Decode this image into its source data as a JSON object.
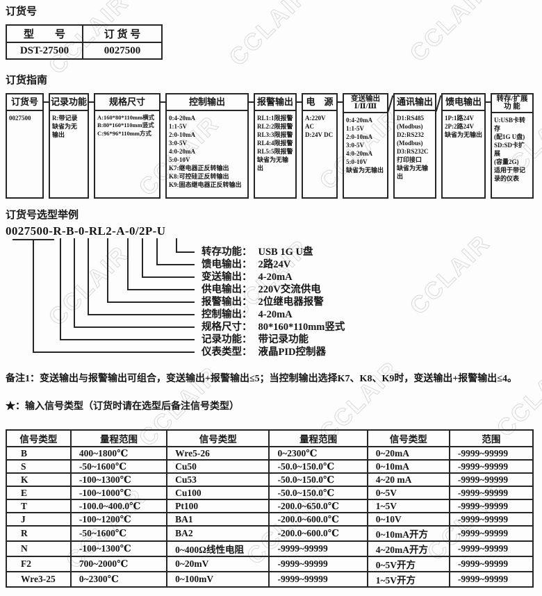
{
  "watermark": {
    "text": "CCLAIR"
  },
  "sections": {
    "order_no_title": "订货号",
    "guide_title": "订货指南",
    "example_title": "订货号选型举例",
    "note1": "备注1：变送输出与报警输出可组合，变送输出+报警输出≤5；当控制输出选择K7、K8、K9时，变送输出+报警输出≤4。",
    "star_note": "★：输入信号类型（订货时请在选型后备注信号类型）"
  },
  "model_table": {
    "headers": [
      "型　　号",
      "订 货 号"
    ],
    "rows": [
      [
        "DST-27500",
        "0027500"
      ]
    ]
  },
  "guide": {
    "columns": [
      {
        "header": "订货号",
        "content": "0027500"
      },
      {
        "header": "记录功能",
        "content": "R:带记录\n缺省为无\n输出"
      },
      {
        "header": "规格尺寸",
        "content": "A:160*80*110mm横式\nB:80*160*110mm竖式\nC:96*96*110mm方式"
      },
      {
        "header": "控制输出",
        "content": "0:4-20mA\n1:1-5V\n2:0-10mA\n3:0-5V\n4:0-20mA\n5:0-10V\nK7:继电器正反转输出\nK8:可控硅正反转输出\nK9:固态继电器正反转输出"
      },
      {
        "header": "报警输出",
        "content": "RL1:1限报警\nRL2:2限报警\nRL3:3限报警\nRL4:4限报警\nRL5:5限报警\n缺省为无输出"
      },
      {
        "header": "电　源",
        "content": "A:220V AC\nD:24V DC"
      },
      {
        "header": "变送输出\nⅠ/Ⅱ/Ⅲ",
        "content": "0:4-20mA\n1:1-5V\n2:0-10mA\n3:0-5V\n4:0-20mA\n5:0-10V\n缺省为无输出"
      },
      {
        "header": "通讯输出",
        "content": "D1:RS485\n(Modbus)\nD2:RS232\n(Modbus)\nD3:RS232C\n打印接口\n缺省为无输出"
      },
      {
        "header": "馈电输出",
        "content": "1P:1路24V\n2P:2路24V\n缺省为无输出"
      },
      {
        "header": "转存/扩展\n功 能",
        "content": "U:USB卡转存\n(配1G U盘)\nSD:SD卡扩展\n(容量2G)\n适用于带记\n录的仪表"
      }
    ]
  },
  "example": {
    "code": "0027500-R-B-0-RL2-A-0/2P-U",
    "items": [
      {
        "name": "转存功能：",
        "value": "USB 1G U盘"
      },
      {
        "name": "馈电输出：",
        "value": "2路24V"
      },
      {
        "name": "变送输出：",
        "value": "4-20mA"
      },
      {
        "name": "供电输出：",
        "value": "220V交流供电"
      },
      {
        "name": "报警输出：",
        "value": "2位继电器报警"
      },
      {
        "name": "控制输出：",
        "value": "4-20mA"
      },
      {
        "name": "规格尺寸：",
        "value": "80*160*110mm竖式"
      },
      {
        "name": "记录功能：",
        "value": "带记录功能"
      },
      {
        "name": "仪表类型：",
        "value": "液晶PID控制器"
      }
    ]
  },
  "signal_table": {
    "headers": [
      "信号类型",
      "量程范围",
      "信号类型",
      "量程范围",
      "信号类型",
      "范围"
    ],
    "rows": [
      [
        "B",
        "400~1800℃",
        "Wre5-26",
        "0~2300℃",
        "0~20mA",
        "-9999~99999"
      ],
      [
        "S",
        "-50~1600℃",
        "Cu50",
        "-50.0~150.0℃",
        "0~10mA",
        "-9999~99999"
      ],
      [
        "K",
        "-100~1300℃",
        "Cu53",
        "-50.0~150.0℃",
        "4~20 mA",
        "-9999~99999"
      ],
      [
        "E",
        "-100~1000℃",
        "Cu100",
        "-50.0~150.0℃",
        "0~5V",
        "-9999~99999"
      ],
      [
        "T",
        "-100.0~400.0℃",
        "Pt100",
        "-200.0~650.0℃",
        "1~5V",
        "-9999~99999"
      ],
      [
        "J",
        "-100~1200℃",
        "BA1",
        "-200.0~600.0℃",
        "0~10V",
        "-9999~99999"
      ],
      [
        "R",
        "-50~1600℃",
        "BA2",
        "-200.0~600.0℃",
        "0~10mA开方",
        "-9999~99999"
      ],
      [
        "N",
        "-100~1300℃",
        "0~400Ω线性电阻",
        "-9999~99999",
        "4~20mA开方",
        "-9999~99999"
      ],
      [
        "F2",
        "700~2000℃",
        "0~20mV",
        "-9999~99999",
        "0~5V开方",
        "-9999~99999"
      ],
      [
        "Wre3-25",
        "0~2300℃",
        "0~100mV",
        "-9999~99999",
        "1~5V开方",
        "-9999~99999"
      ]
    ]
  }
}
